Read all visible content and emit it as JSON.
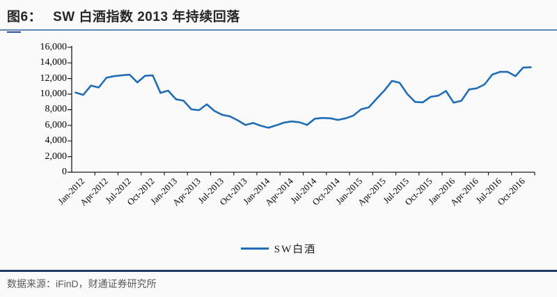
{
  "header": {
    "figure_label": "图6：",
    "title": "SW 白酒指数 2013 年持续回落"
  },
  "footer": {
    "source": "数据来源：iFinD，财通证券研究所"
  },
  "colors": {
    "line": "#1f6cb4",
    "title_rule": "#5e86b0",
    "title_rule_accent": "#2b4ea3",
    "footer_rule": "#1f3864",
    "axis": "#1a1a1a"
  },
  "chart_data": {
    "type": "line",
    "title": "SW 白酒指数 2013 年持续回落",
    "xlabel": "",
    "ylabel": "",
    "ylim": [
      0,
      16000
    ],
    "grid": false,
    "legend_position": "bottom",
    "y_tick_labels": [
      "0",
      "2,000",
      "4,000",
      "6,000",
      "8,000",
      "10,000",
      "12,000",
      "14,000",
      "16,000"
    ],
    "x_tick_labels": [
      "Jan-2012",
      "Apr-2012",
      "Jul-2012",
      "Oct-2012",
      "Jan-2013",
      "Apr-2013",
      "Jul-2013",
      "Oct-2013",
      "Jan-2014",
      "Apr-2014",
      "Jul-2014",
      "Oct-2014",
      "Jan-2015",
      "Apr-2015",
      "Jul-2015",
      "Oct-2015",
      "Jan-2016",
      "Apr-2016",
      "Jul-2016",
      "Oct-2016"
    ],
    "x": [
      "Jan-2012",
      "Feb-2012",
      "Mar-2012",
      "Apr-2012",
      "May-2012",
      "Jun-2012",
      "Jul-2012",
      "Aug-2012",
      "Sep-2012",
      "Oct-2012",
      "Nov-2012",
      "Dec-2012",
      "Jan-2013",
      "Feb-2013",
      "Mar-2013",
      "Apr-2013",
      "May-2013",
      "Jun-2013",
      "Jul-2013",
      "Aug-2013",
      "Sep-2013",
      "Oct-2013",
      "Nov-2013",
      "Dec-2013",
      "Jan-2014",
      "Feb-2014",
      "Mar-2014",
      "Apr-2014",
      "May-2014",
      "Jun-2014",
      "Jul-2014",
      "Aug-2014",
      "Sep-2014",
      "Oct-2014",
      "Nov-2014",
      "Dec-2014",
      "Jan-2015",
      "Feb-2015",
      "Mar-2015",
      "Apr-2015",
      "May-2015",
      "Jun-2015",
      "Jul-2015",
      "Aug-2015",
      "Sep-2015",
      "Oct-2015",
      "Nov-2015",
      "Dec-2015",
      "Jan-2016",
      "Feb-2016",
      "Mar-2016",
      "Apr-2016",
      "May-2016",
      "Jun-2016",
      "Jul-2016",
      "Aug-2016",
      "Sep-2016",
      "Oct-2016",
      "Nov-2016",
      "Dec-2016"
    ],
    "series": [
      {
        "name": "SW白酒",
        "values": [
          10200,
          9900,
          11100,
          10850,
          12100,
          12300,
          12400,
          12500,
          11500,
          12350,
          12400,
          10150,
          10450,
          9350,
          9150,
          8050,
          7950,
          8700,
          7850,
          7350,
          7150,
          6650,
          6050,
          6300,
          5950,
          5700,
          6000,
          6350,
          6500,
          6400,
          6050,
          6850,
          6950,
          6900,
          6700,
          6900,
          7250,
          8050,
          8300,
          9400,
          10450,
          11700,
          11450,
          10000,
          9000,
          8950,
          9650,
          9800,
          10400,
          8900,
          9150,
          10600,
          10750,
          11250,
          12500,
          12850,
          12850,
          12300,
          13400,
          13450
        ]
      }
    ]
  }
}
